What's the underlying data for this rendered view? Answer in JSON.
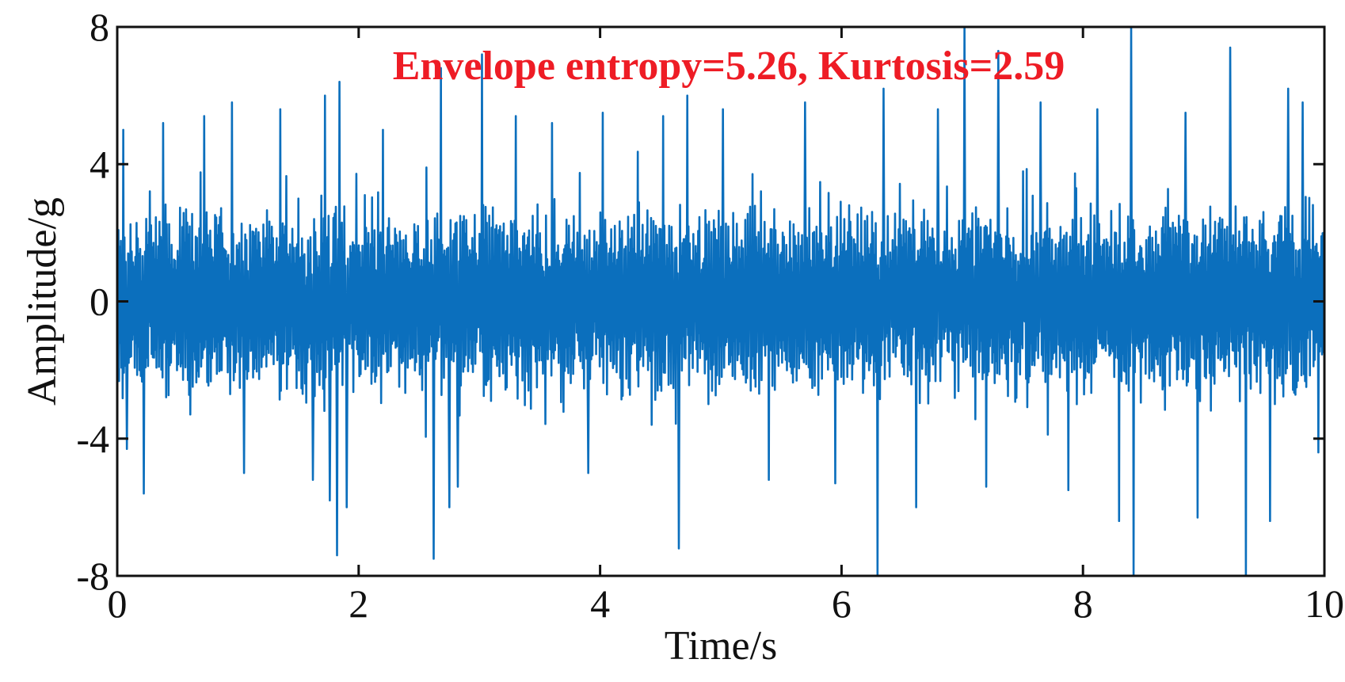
{
  "chart_data": {
    "type": "line",
    "title": "",
    "xlabel": "Time/s",
    "ylabel": "Amplitude/g",
    "xlim": [
      0,
      10
    ],
    "ylim": [
      -8,
      8
    ],
    "xticks": [
      0,
      2,
      4,
      6,
      8,
      10
    ],
    "yticks": [
      -8,
      -4,
      0,
      4,
      8
    ],
    "xtick_labels": [
      "0",
      "2",
      "4",
      "6",
      "8",
      "10"
    ],
    "ytick_labels": [
      "-8",
      "-4",
      "0",
      "4",
      "8"
    ],
    "grid": false,
    "annotation": "Envelope entropy=5.26,  Kurtosis=2.59",
    "colors": {
      "series": "#0b6fbd",
      "annotation": "#ee1c25",
      "axes": "#111111"
    },
    "series": [
      {
        "description_free": true,
        "sample_rate_note": "",
        "x_start": 0,
        "x_end": 10,
        "n_points": 2000,
        "envelope_typical": 3.0,
        "peak_events": [
          {
            "x": 0.05,
            "y": 5.0
          },
          {
            "x": 0.08,
            "y": -4.3
          },
          {
            "x": 0.22,
            "y": -5.6
          },
          {
            "x": 0.38,
            "y": 5.2
          },
          {
            "x": 0.72,
            "y": 5.4
          },
          {
            "x": 0.95,
            "y": 5.8
          },
          {
            "x": 1.05,
            "y": -5.0
          },
          {
            "x": 1.35,
            "y": 5.6
          },
          {
            "x": 1.62,
            "y": -5.2
          },
          {
            "x": 1.72,
            "y": 6.0
          },
          {
            "x": 1.76,
            "y": -5.8
          },
          {
            "x": 1.82,
            "y": -7.4
          },
          {
            "x": 1.84,
            "y": 6.4
          },
          {
            "x": 1.9,
            "y": -6.0
          },
          {
            "x": 2.2,
            "y": 5.0
          },
          {
            "x": 2.62,
            "y": -7.5
          },
          {
            "x": 2.68,
            "y": 6.8
          },
          {
            "x": 2.75,
            "y": -6.0
          },
          {
            "x": 2.82,
            "y": -5.4
          },
          {
            "x": 3.02,
            "y": 7.2
          },
          {
            "x": 3.3,
            "y": 5.4
          },
          {
            "x": 3.6,
            "y": 5.2
          },
          {
            "x": 3.9,
            "y": -5.0
          },
          {
            "x": 4.02,
            "y": 5.5
          },
          {
            "x": 4.52,
            "y": 5.4
          },
          {
            "x": 4.65,
            "y": -7.2
          },
          {
            "x": 4.72,
            "y": 6.0
          },
          {
            "x": 5.02,
            "y": 5.6
          },
          {
            "x": 5.4,
            "y": -5.2
          },
          {
            "x": 5.7,
            "y": 5.8
          },
          {
            "x": 5.95,
            "y": -5.3
          },
          {
            "x": 6.3,
            "y": -8.0
          },
          {
            "x": 6.35,
            "y": 6.2
          },
          {
            "x": 6.62,
            "y": -6.0
          },
          {
            "x": 6.8,
            "y": 5.6
          },
          {
            "x": 7.02,
            "y": 8.0
          },
          {
            "x": 7.2,
            "y": -5.4
          },
          {
            "x": 7.3,
            "y": 7.3
          },
          {
            "x": 7.65,
            "y": 5.8
          },
          {
            "x": 7.88,
            "y": -5.5
          },
          {
            "x": 8.12,
            "y": 5.6
          },
          {
            "x": 8.3,
            "y": -6.4
          },
          {
            "x": 8.4,
            "y": 8.0
          },
          {
            "x": 8.42,
            "y": -8.0
          },
          {
            "x": 8.85,
            "y": 5.5
          },
          {
            "x": 8.95,
            "y": -6.3
          },
          {
            "x": 9.22,
            "y": 7.4
          },
          {
            "x": 9.35,
            "y": -8.0
          },
          {
            "x": 9.55,
            "y": -6.4
          },
          {
            "x": 9.7,
            "y": 6.2
          },
          {
            "x": 9.82,
            "y": 5.8
          },
          {
            "x": 9.95,
            "y": -4.4
          }
        ]
      }
    ]
  }
}
